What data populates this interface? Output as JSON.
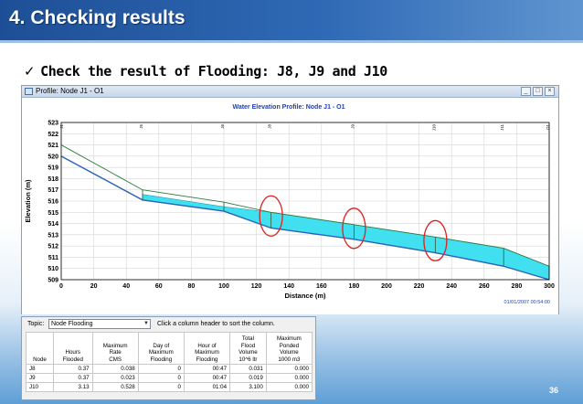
{
  "slide": {
    "title": "4. Checking results",
    "bullet_mark": "✓",
    "bullet_text": "Check the result of Flooding: J8, J9 and J10",
    "page_number": "36"
  },
  "profile_window": {
    "title": "Profile: Node J1 - O1",
    "buttons": [
      "_",
      "□",
      "×"
    ]
  },
  "chart_data": {
    "type": "line",
    "title": "Water Elevation Profile: Node J1 - O1",
    "xlabel": "Distance (m)",
    "ylabel": "Elevation (m)",
    "xlim": [
      0,
      300
    ],
    "ylim": [
      509,
      523
    ],
    "x_ticks": [
      0,
      20,
      40,
      60,
      80,
      100,
      120,
      140,
      160,
      180,
      200,
      220,
      240,
      260,
      280,
      300
    ],
    "y_ticks": [
      509,
      510,
      511,
      512,
      513,
      514,
      515,
      516,
      517,
      518,
      519,
      520,
      521,
      522,
      523
    ],
    "node_labels": [
      {
        "name": "J1",
        "x": 0
      },
      {
        "name": "J5",
        "x": 50
      },
      {
        "name": "J6",
        "x": 100
      },
      {
        "name": "J8",
        "x": 129
      },
      {
        "name": "J9",
        "x": 180
      },
      {
        "name": "J10",
        "x": 230
      },
      {
        "name": "J11",
        "x": 272
      },
      {
        "name": "O1",
        "x": 300
      }
    ],
    "series": [
      {
        "name": "Ground",
        "x": [
          0,
          50,
          100,
          129,
          180,
          230,
          272,
          300
        ],
        "values": [
          521.0,
          517.0,
          515.9,
          515.0,
          513.9,
          512.8,
          511.8,
          510.2
        ]
      },
      {
        "name": "Invert",
        "x": [
          0,
          50,
          100,
          129,
          180,
          230,
          272,
          300
        ],
        "values": [
          520.0,
          516.1,
          515.1,
          513.6,
          512.6,
          511.4,
          510.2,
          509.0
        ]
      },
      {
        "name": "Water Surface",
        "x": [
          50,
          100,
          129,
          180,
          230,
          272,
          300
        ],
        "values": [
          516.6,
          515.5,
          515.0,
          513.9,
          512.8,
          511.8,
          510.2
        ]
      }
    ],
    "flooded_nodes": [
      "J8",
      "J9",
      "J10"
    ],
    "timestamp": "01/01/2007 00:54:00",
    "colors": {
      "ground": "#2f7a40",
      "invert": "#2a62b8",
      "water": "#40e0f0",
      "highlight": "#e02020",
      "title": "#1f3fb5"
    }
  },
  "table_window": {
    "topic_label": "Topic:",
    "topic_value": "Node Flooding",
    "hint": "Click a column header to sort the column.",
    "columns": [
      [
        "Node"
      ],
      [
        "Hours",
        "Flooded"
      ],
      [
        "Maximum",
        "Rate",
        "CMS"
      ],
      [
        "Day of",
        "Maximum",
        "Flooding"
      ],
      [
        "Hour of",
        "Maximum",
        "Flooding"
      ],
      [
        "Total",
        "Flood",
        "Volume",
        "10^6 ltr"
      ],
      [
        "Maximum",
        "Ponded",
        "Volume",
        "1000 m3"
      ]
    ],
    "rows": [
      [
        "J8",
        "0.37",
        "0.038",
        "0",
        "00:47",
        "0.031",
        "0.000"
      ],
      [
        "J9",
        "0.37",
        "0.023",
        "0",
        "00:47",
        "0.019",
        "0.000"
      ],
      [
        "J10",
        "3.13",
        "0.528",
        "0",
        "01:04",
        "3.100",
        "0.000"
      ]
    ]
  }
}
